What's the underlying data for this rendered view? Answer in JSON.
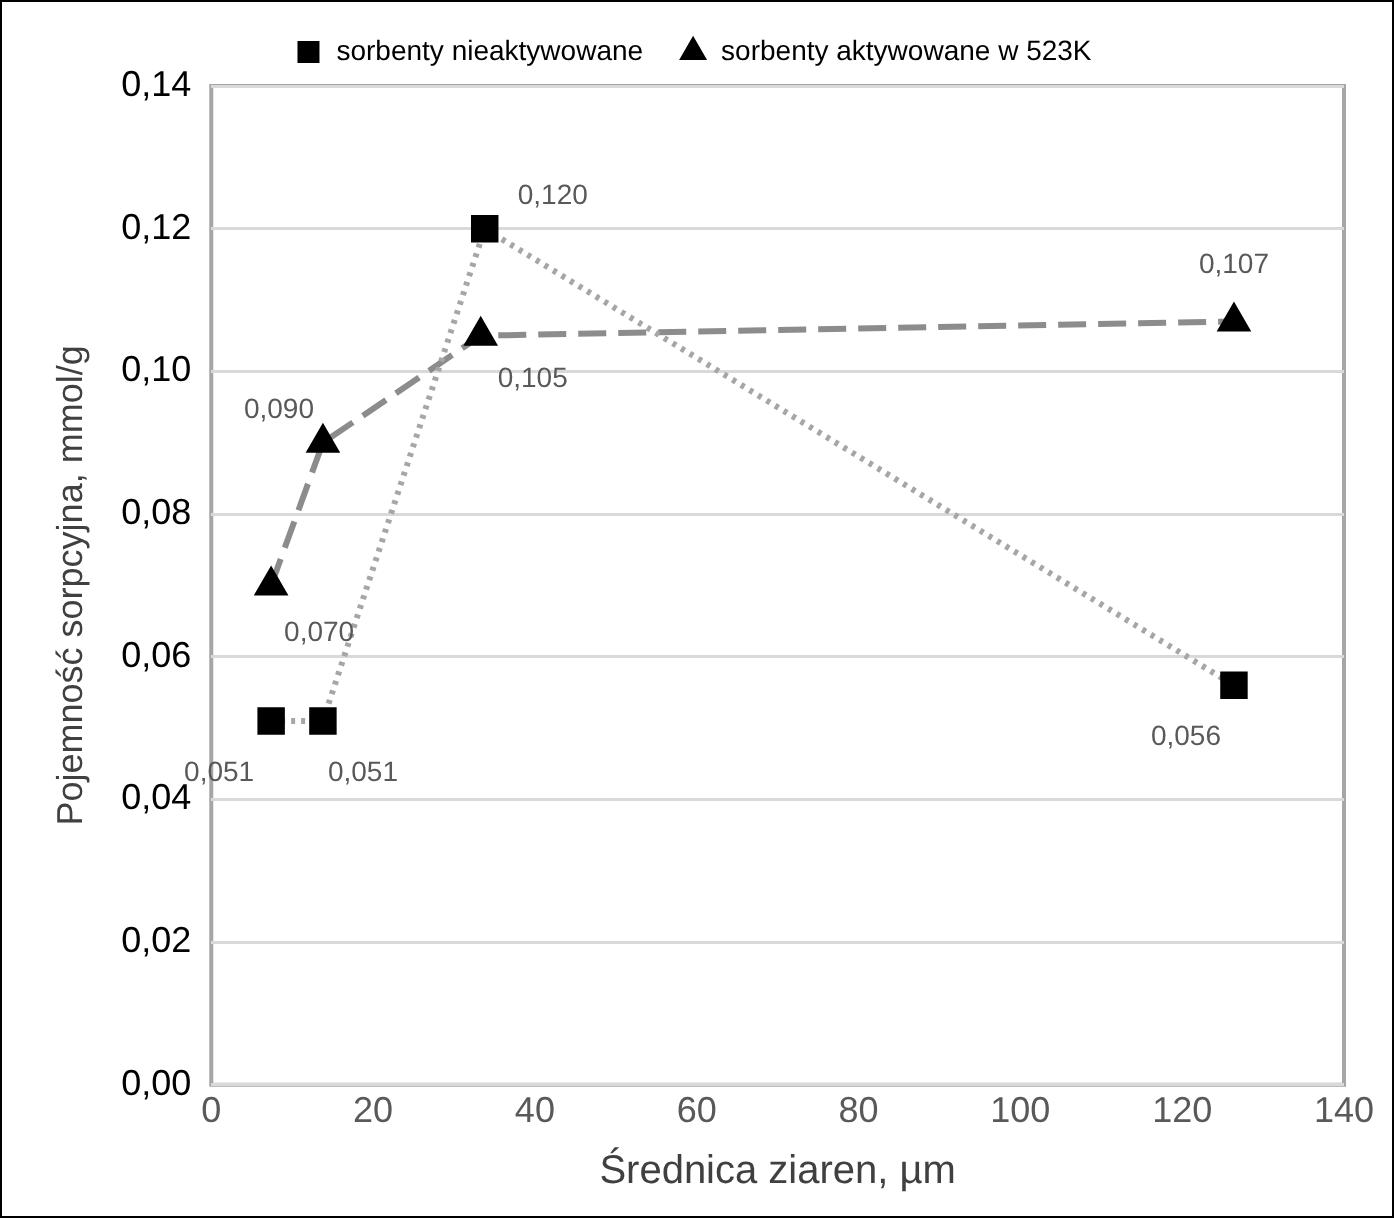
{
  "chart_data": {
    "type": "line",
    "xlabel": "Średnica ziaren, µm",
    "ylabel": "Pojemność sorpcyjna, mmol/g",
    "xlim": [
      0,
      140
    ],
    "xticks": [
      0,
      20,
      40,
      60,
      80,
      100,
      120,
      140
    ],
    "ylim": [
      0,
      0.14
    ],
    "yticks": [
      {
        "value": 0,
        "label": "0,00"
      },
      {
        "value": 0.02,
        "label": "0,02"
      },
      {
        "value": 0.04,
        "label": "0,04"
      },
      {
        "value": 0.06,
        "label": "0,06"
      },
      {
        "value": 0.08,
        "label": "0,08"
      },
      {
        "value": 0.1,
        "label": "0,10"
      },
      {
        "value": 0.12,
        "label": "0,12"
      },
      {
        "value": 0.14,
        "label": "0,14"
      }
    ],
    "grid": "y",
    "legend": "top",
    "series": [
      {
        "name": "sorbenty nieaktywowane",
        "color": "#a6a6a6",
        "marker": "square",
        "line_style": "dotted",
        "x": [
          7.4,
          13.8,
          33.8,
          126.4
        ],
        "values": [
          0.051,
          0.051,
          0.12,
          0.056
        ],
        "value_labels": [
          "0,051",
          "0,051",
          "0,120",
          "0,056"
        ]
      },
      {
        "name": "sorbenty aktywowane w 523K",
        "color": "#8c8c8c",
        "marker": "triangle",
        "line_style": "dashed",
        "x": [
          7.4,
          13.8,
          33.3,
          126.4
        ],
        "values": [
          0.07,
          0.09,
          0.105,
          0.107
        ],
        "value_labels": [
          "0,070",
          "0,090",
          "0,105",
          "0,107"
        ]
      }
    ]
  }
}
